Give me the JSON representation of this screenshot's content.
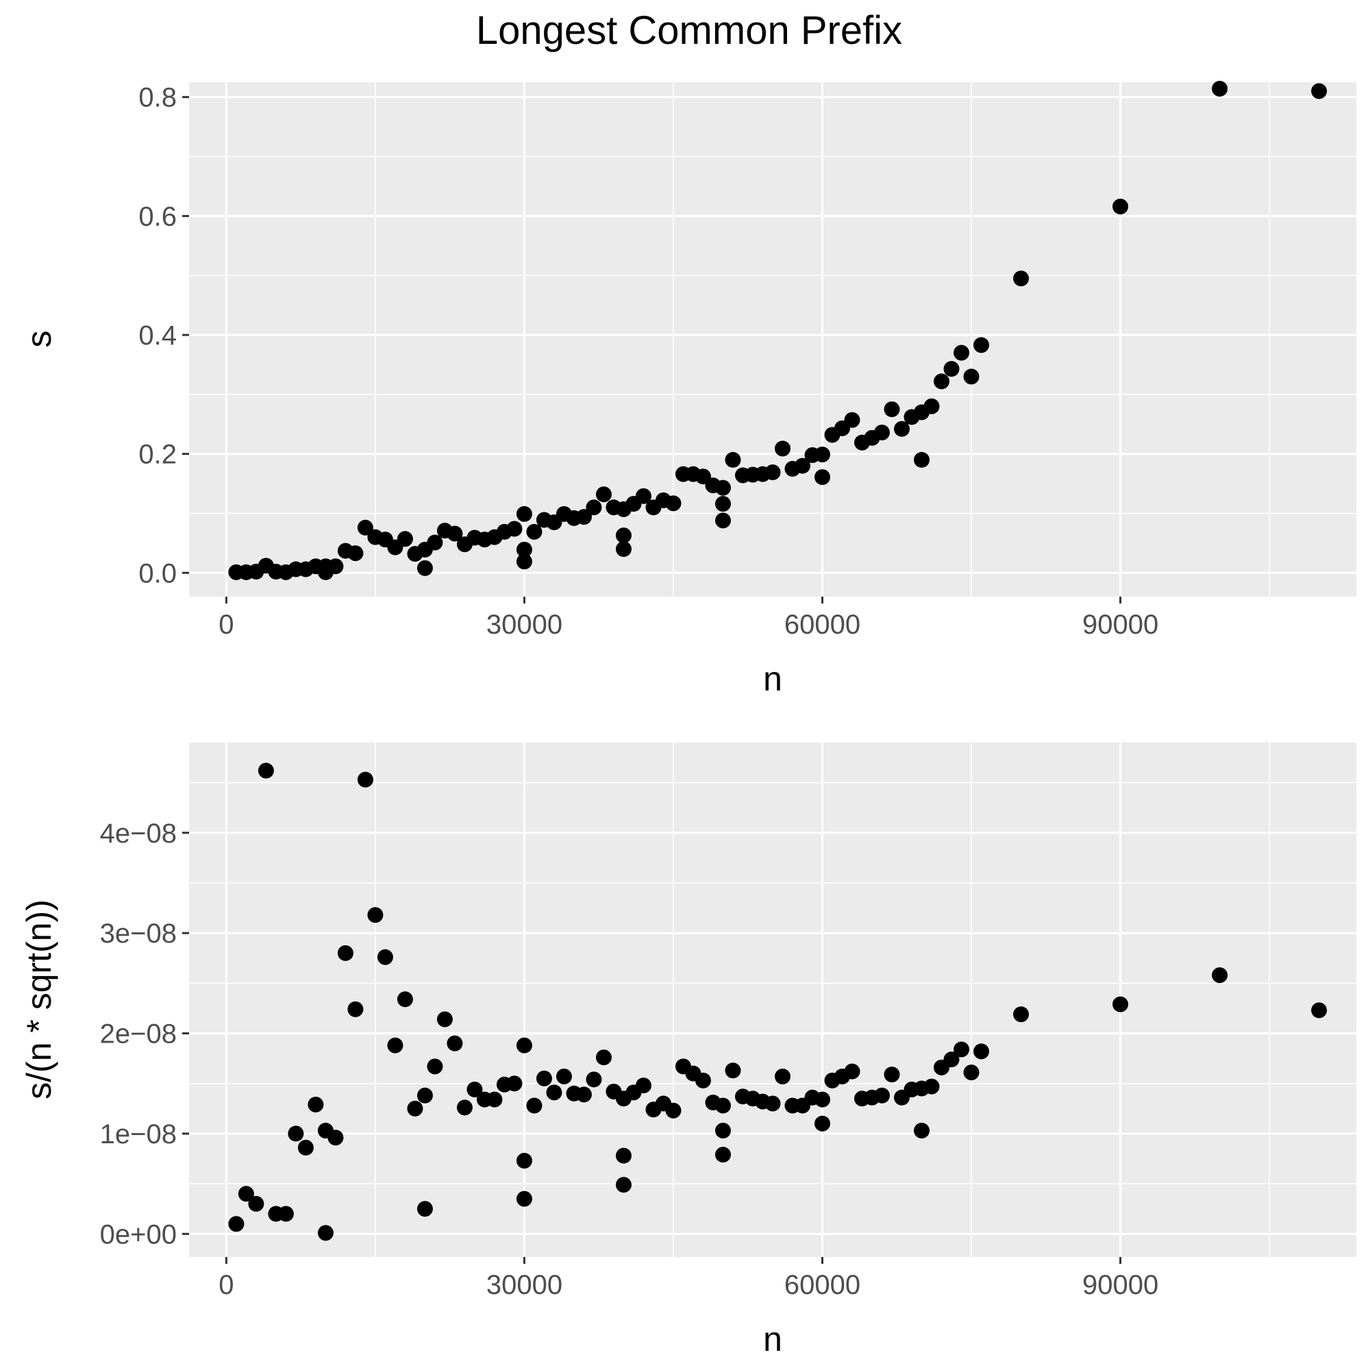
{
  "title": "Longest Common Prefix",
  "colors": {
    "panel": "#ebebeb",
    "grid": "#ffffff",
    "point": "#000000",
    "tick": "#333333",
    "tick_text": "#4d4d4d"
  },
  "chart_data": [
    {
      "type": "scatter",
      "xlabel": "n",
      "ylabel": "s",
      "xlim": [
        -3750,
        113750
      ],
      "ylim": [
        -0.04,
        0.825
      ],
      "x_ticks": [
        0,
        30000,
        60000,
        90000
      ],
      "x_tick_labels": [
        "0",
        "30000",
        "60000",
        "90000"
      ],
      "y_ticks": [
        0,
        0.2,
        0.4,
        0.6,
        0.8
      ],
      "y_tick_labels": [
        "0.0",
        "0.2",
        "0.4",
        "0.6",
        "0.8"
      ],
      "grid": true,
      "points": [
        [
          1000,
          0.001
        ],
        [
          2000,
          0.001
        ],
        [
          3000,
          0.002
        ],
        [
          4000,
          0.012
        ],
        [
          5000,
          0.002
        ],
        [
          6000,
          0.001
        ],
        [
          7000,
          0.006
        ],
        [
          8000,
          0.006
        ],
        [
          9000,
          0.011
        ],
        [
          10000,
          0.001
        ],
        [
          10000,
          0.011
        ],
        [
          11000,
          0.011
        ],
        [
          12000,
          0.037
        ],
        [
          13000,
          0.033
        ],
        [
          14000,
          0.076
        ],
        [
          15000,
          0.06
        ],
        [
          16000,
          0.056
        ],
        [
          17000,
          0.043
        ],
        [
          18000,
          0.057
        ],
        [
          19000,
          0.032
        ],
        [
          20000,
          0.039
        ],
        [
          20000,
          0.008
        ],
        [
          21000,
          0.051
        ],
        [
          22000,
          0.071
        ],
        [
          23000,
          0.066
        ],
        [
          24000,
          0.048
        ],
        [
          25000,
          0.059
        ],
        [
          26000,
          0.056
        ],
        [
          27000,
          0.06
        ],
        [
          28000,
          0.069
        ],
        [
          29000,
          0.074
        ],
        [
          30000,
          0.099
        ],
        [
          30000,
          0.039
        ],
        [
          30000,
          0.019
        ],
        [
          31000,
          0.069
        ],
        [
          32000,
          0.089
        ],
        [
          33000,
          0.085
        ],
        [
          34000,
          0.099
        ],
        [
          35000,
          0.092
        ],
        [
          36000,
          0.094
        ],
        [
          37000,
          0.11
        ],
        [
          38000,
          0.132
        ],
        [
          39000,
          0.11
        ],
        [
          40000,
          0.107
        ],
        [
          40000,
          0.063
        ],
        [
          40000,
          0.04
        ],
        [
          41000,
          0.116
        ],
        [
          42000,
          0.129
        ],
        [
          43000,
          0.11
        ],
        [
          44000,
          0.122
        ],
        [
          45000,
          0.117
        ],
        [
          46000,
          0.166
        ],
        [
          47000,
          0.166
        ],
        [
          48000,
          0.162
        ],
        [
          49000,
          0.147
        ],
        [
          50000,
          0.143
        ],
        [
          50000,
          0.116
        ],
        [
          50000,
          0.088
        ],
        [
          51000,
          0.19
        ],
        [
          52000,
          0.164
        ],
        [
          53000,
          0.165
        ],
        [
          54000,
          0.166
        ],
        [
          55000,
          0.169
        ],
        [
          56000,
          0.209
        ],
        [
          57000,
          0.175
        ],
        [
          58000,
          0.18
        ],
        [
          59000,
          0.198
        ],
        [
          60000,
          0.199
        ],
        [
          60000,
          0.161
        ],
        [
          61000,
          0.232
        ],
        [
          62000,
          0.243
        ],
        [
          63000,
          0.257
        ],
        [
          64000,
          0.219
        ],
        [
          65000,
          0.227
        ],
        [
          66000,
          0.236
        ],
        [
          67000,
          0.275
        ],
        [
          68000,
          0.242
        ],
        [
          69000,
          0.262
        ],
        [
          70000,
          0.27
        ],
        [
          70000,
          0.19
        ],
        [
          71000,
          0.28
        ],
        [
          72000,
          0.322
        ],
        [
          73000,
          0.343
        ],
        [
          74000,
          0.37
        ],
        [
          75000,
          0.33
        ],
        [
          76000,
          0.383
        ],
        [
          80000,
          0.495
        ],
        [
          90000,
          0.616
        ],
        [
          100000,
          0.814
        ],
        [
          110000,
          0.81
        ]
      ]
    },
    {
      "type": "scatter",
      "xlabel": "n",
      "ylabel": "s/(n * sqrt(n))",
      "xlim": [
        -3750,
        113750
      ],
      "ylim": [
        -2.3e-09,
        4.9e-08
      ],
      "x_ticks": [
        0,
        30000,
        60000,
        90000
      ],
      "x_tick_labels": [
        "0",
        "30000",
        "60000",
        "90000"
      ],
      "y_ticks": [
        0,
        1e-08,
        2e-08,
        3e-08,
        4e-08
      ],
      "y_tick_labels": [
        "0e+00",
        "1e−08",
        "2e−08",
        "3e−08",
        "4e−08"
      ],
      "grid": true,
      "points": [
        [
          1000,
          1e-09
        ],
        [
          2000,
          4e-09
        ],
        [
          3000,
          3e-09
        ],
        [
          4000,
          4.62e-08
        ],
        [
          5000,
          2e-09
        ],
        [
          6000,
          2e-09
        ],
        [
          7000,
          1e-08
        ],
        [
          8000,
          8.6e-09
        ],
        [
          9000,
          1.29e-08
        ],
        [
          10000,
          1.03e-08
        ],
        [
          10000,
          1e-10
        ],
        [
          11000,
          9.6e-09
        ],
        [
          12000,
          2.8e-08
        ],
        [
          13000,
          2.24e-08
        ],
        [
          14000,
          4.53e-08
        ],
        [
          15000,
          3.18e-08
        ],
        [
          16000,
          2.76e-08
        ],
        [
          17000,
          1.88e-08
        ],
        [
          18000,
          2.34e-08
        ],
        [
          19000,
          1.25e-08
        ],
        [
          20000,
          1.38e-08
        ],
        [
          20000,
          2.5e-09
        ],
        [
          21000,
          1.67e-08
        ],
        [
          22000,
          2.14e-08
        ],
        [
          23000,
          1.9e-08
        ],
        [
          24000,
          1.26e-08
        ],
        [
          25000,
          1.44e-08
        ],
        [
          26000,
          1.34e-08
        ],
        [
          27000,
          1.34e-08
        ],
        [
          28000,
          1.49e-08
        ],
        [
          29000,
          1.5e-08
        ],
        [
          30000,
          1.88e-08
        ],
        [
          30000,
          7.3e-09
        ],
        [
          30000,
          3.5e-09
        ],
        [
          31000,
          1.28e-08
        ],
        [
          32000,
          1.55e-08
        ],
        [
          33000,
          1.41e-08
        ],
        [
          34000,
          1.57e-08
        ],
        [
          35000,
          1.4e-08
        ],
        [
          36000,
          1.39e-08
        ],
        [
          37000,
          1.54e-08
        ],
        [
          38000,
          1.76e-08
        ],
        [
          39000,
          1.42e-08
        ],
        [
          40000,
          1.35e-08
        ],
        [
          40000,
          7.8e-09
        ],
        [
          40000,
          4.9e-09
        ],
        [
          41000,
          1.41e-08
        ],
        [
          42000,
          1.48e-08
        ],
        [
          43000,
          1.24e-08
        ],
        [
          44000,
          1.3e-08
        ],
        [
          45000,
          1.23e-08
        ],
        [
          46000,
          1.67e-08
        ],
        [
          47000,
          1.6e-08
        ],
        [
          48000,
          1.53e-08
        ],
        [
          49000,
          1.31e-08
        ],
        [
          50000,
          1.28e-08
        ],
        [
          50000,
          1.03e-08
        ],
        [
          50000,
          7.9e-09
        ],
        [
          51000,
          1.63e-08
        ],
        [
          52000,
          1.37e-08
        ],
        [
          53000,
          1.35e-08
        ],
        [
          54000,
          1.32e-08
        ],
        [
          55000,
          1.3e-08
        ],
        [
          56000,
          1.57e-08
        ],
        [
          57000,
          1.28e-08
        ],
        [
          58000,
          1.28e-08
        ],
        [
          59000,
          1.36e-08
        ],
        [
          60000,
          1.34e-08
        ],
        [
          60000,
          1.1e-08
        ],
        [
          61000,
          1.53e-08
        ],
        [
          62000,
          1.57e-08
        ],
        [
          63000,
          1.62e-08
        ],
        [
          64000,
          1.35e-08
        ],
        [
          65000,
          1.36e-08
        ],
        [
          66000,
          1.38e-08
        ],
        [
          67000,
          1.59e-08
        ],
        [
          68000,
          1.36e-08
        ],
        [
          69000,
          1.44e-08
        ],
        [
          70000,
          1.45e-08
        ],
        [
          70000,
          1.03e-08
        ],
        [
          71000,
          1.47e-08
        ],
        [
          72000,
          1.66e-08
        ],
        [
          73000,
          1.74e-08
        ],
        [
          74000,
          1.84e-08
        ],
        [
          75000,
          1.61e-08
        ],
        [
          76000,
          1.82e-08
        ],
        [
          80000,
          2.19e-08
        ],
        [
          90000,
          2.29e-08
        ],
        [
          100000,
          2.58e-08
        ],
        [
          110000,
          2.23e-08
        ]
      ]
    }
  ]
}
